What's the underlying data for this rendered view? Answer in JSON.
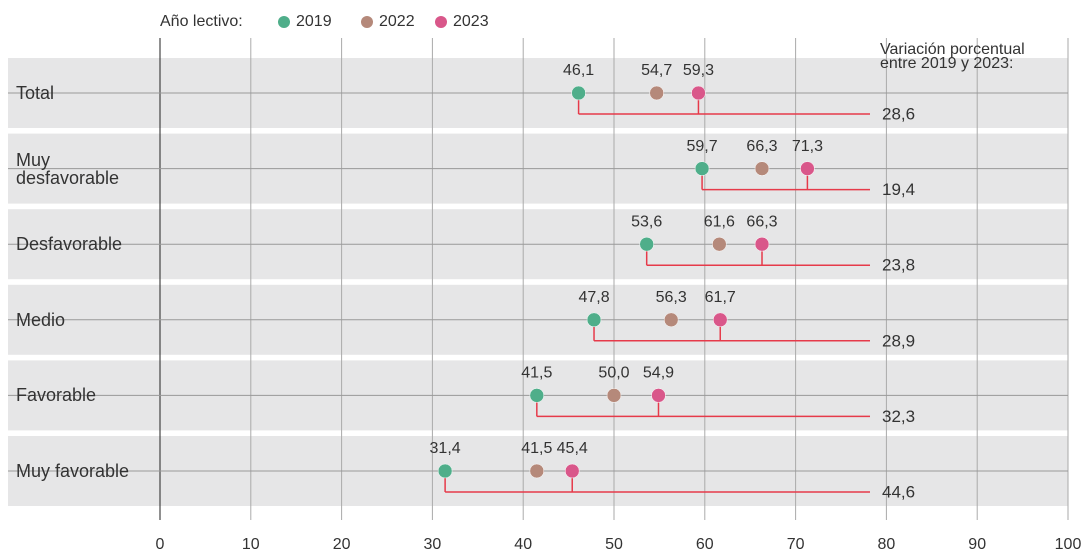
{
  "chart_data": {
    "type": "dot",
    "legend_title": "Año lectivo:",
    "categories": [
      "Total",
      "Muy desfavorable",
      "Desfavorable",
      "Medio",
      "Favorable",
      "Muy favorable"
    ],
    "series": [
      {
        "name": "2019",
        "color": "#4fae8a",
        "values": [
          46.1,
          59.7,
          53.6,
          47.8,
          41.5,
          31.4
        ],
        "value_labels": [
          "46,1",
          "59,7",
          "53,6",
          "47,8",
          "41,5",
          "31,4"
        ]
      },
      {
        "name": "2022",
        "color": "#b5897a",
        "values": [
          54.7,
          66.3,
          61.6,
          56.3,
          50.0,
          41.5
        ],
        "value_labels": [
          "54,7",
          "66,3",
          "61,6",
          "56,3",
          "50,0",
          "41,5"
        ]
      },
      {
        "name": "2023",
        "color": "#d9578a",
        "values": [
          59.3,
          71.3,
          66.3,
          61.7,
          54.9,
          45.4
        ],
        "value_labels": [
          "59,3",
          "71,3",
          "66,3",
          "61,7",
          "54,9",
          "45,4"
        ]
      }
    ],
    "variation": {
      "title_lines": [
        "Variación porcentual",
        "entre 2019 y 2023:"
      ],
      "color": "#e63a4a",
      "values": [
        28.6,
        19.4,
        23.8,
        28.9,
        32.3,
        44.6
      ],
      "value_labels": [
        "28,6",
        "19,4",
        "23,8",
        "28,9",
        "32,3",
        "44,6"
      ]
    },
    "xlim": [
      0,
      100
    ],
    "xticks": [
      0,
      10,
      20,
      30,
      40,
      50,
      60,
      70,
      80,
      90,
      100
    ],
    "grid": true
  }
}
